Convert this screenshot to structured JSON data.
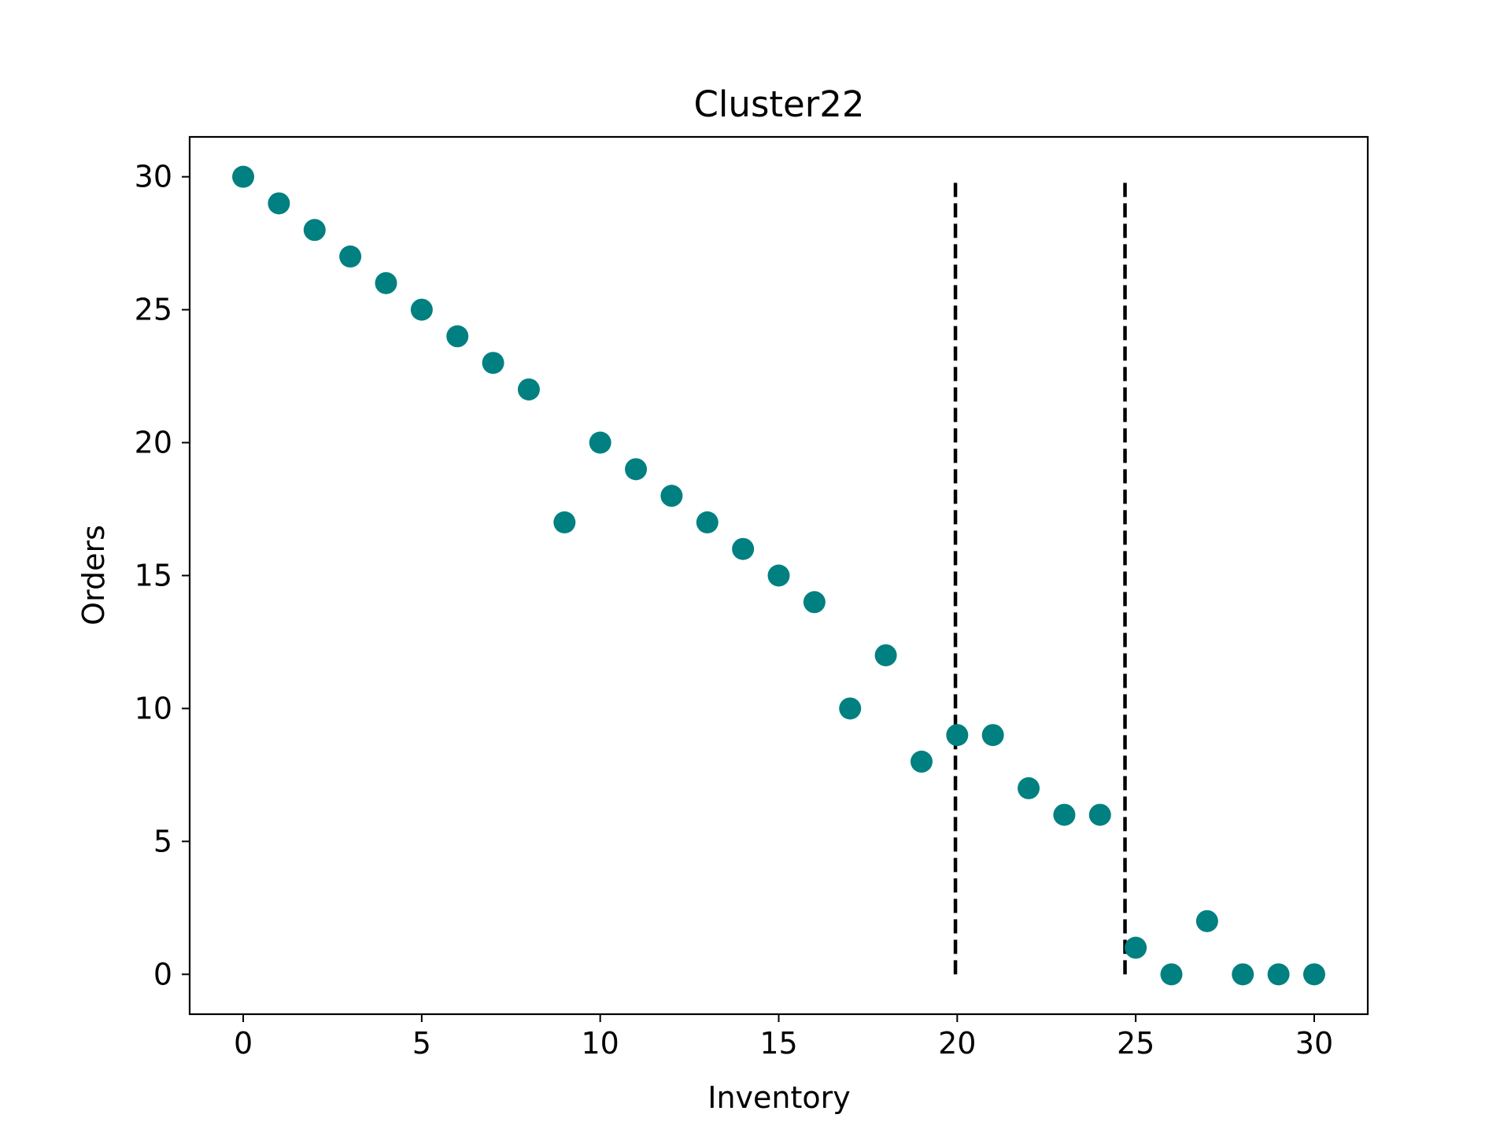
{
  "chart_data": {
    "type": "scatter",
    "title": "Cluster22",
    "xlabel": "Inventory",
    "ylabel": "Orders",
    "xlim": [
      -1.5,
      31.5
    ],
    "ylim": [
      -1.5,
      31.5
    ],
    "xticks": [
      0,
      5,
      10,
      15,
      20,
      25,
      30
    ],
    "yticks": [
      0,
      5,
      10,
      15,
      20,
      25,
      30
    ],
    "grid": false,
    "colors": {
      "points": "#008080",
      "vlines": "#000000"
    },
    "series": [
      {
        "x": [
          0,
          1,
          2,
          3,
          4,
          5,
          6,
          7,
          8,
          9,
          10,
          11,
          12,
          13,
          14,
          15,
          16,
          17,
          18,
          19,
          20,
          21,
          22,
          23,
          24,
          25,
          26,
          27,
          28,
          29,
          30
        ],
        "y": [
          30,
          29,
          28,
          27,
          26,
          25,
          24,
          23,
          22,
          17,
          20,
          19,
          18,
          17,
          16,
          15,
          14,
          10,
          12,
          8,
          9,
          9,
          7,
          6,
          6,
          1,
          0,
          2,
          0,
          0,
          0
        ]
      }
    ],
    "vertical_lines": [
      {
        "x": 19.95,
        "y_range": [
          0,
          30
        ],
        "style": "dashed"
      },
      {
        "x": 24.7,
        "y_range": [
          0,
          30
        ],
        "style": "dashed"
      }
    ]
  }
}
